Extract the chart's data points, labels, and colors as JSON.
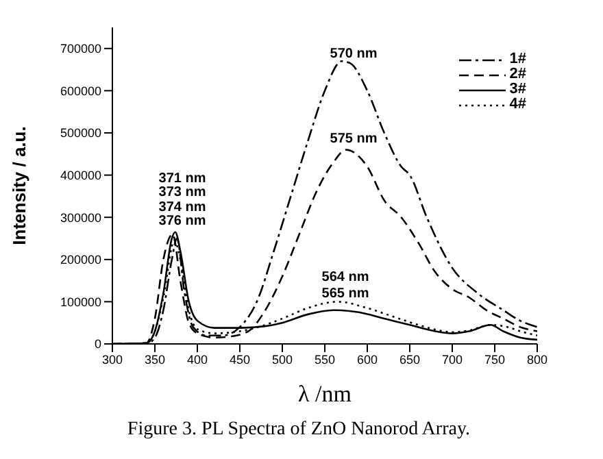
{
  "chart_data": {
    "type": "line",
    "title": "Figure 3. PL Spectra of ZnO Nanorod Array.",
    "xlabel": "λ /nm",
    "ylabel": "Intensity / a.u.",
    "xlim": [
      300,
      800
    ],
    "xticks": [
      300,
      350,
      400,
      450,
      500,
      550,
      600,
      650,
      700,
      750,
      800
    ],
    "ylim": [
      0,
      750000
    ],
    "yticks": [
      0,
      100000,
      200000,
      300000,
      400000,
      500000,
      600000,
      700000
    ],
    "grid": false,
    "legend": "top right",
    "marker": "none",
    "series": [
      {
        "name": "1#",
        "color": "#000000",
        "line_style": "dashdot",
        "x": [
          300,
          340,
          350,
          360,
          370,
          376,
          385,
          395,
          410,
          430,
          450,
          470,
          490,
          510,
          530,
          550,
          570,
          580,
          600,
          620,
          640,
          650,
          670,
          700,
          730,
          760,
          780,
          800
        ],
        "values": [
          0,
          0,
          15000,
          80000,
          200000,
          250000,
          120000,
          40000,
          20000,
          20000,
          40000,
          100000,
          220000,
          350000,
          480000,
          600000,
          670000,
          665000,
          600000,
          500000,
          420000,
          400000,
          300000,
          180000,
          120000,
          80000,
          55000,
          40000
        ]
      },
      {
        "name": "2#",
        "color": "#000000",
        "line_style": "dashed",
        "x": [
          300,
          340,
          350,
          360,
          371,
          380,
          390,
          400,
          420,
          440,
          460,
          480,
          500,
          520,
          540,
          560,
          575,
          600,
          620,
          640,
          660,
          680,
          700,
          720,
          740,
          760,
          780,
          800
        ],
        "values": [
          0,
          2000,
          60000,
          200000,
          260000,
          150000,
          50000,
          25000,
          15000,
          18000,
          30000,
          80000,
          160000,
          260000,
          360000,
          430000,
          460000,
          420000,
          340000,
          300000,
          240000,
          170000,
          130000,
          110000,
          80000,
          60000,
          40000,
          30000
        ]
      },
      {
        "name": "3#",
        "color": "#000000",
        "line_style": "solid",
        "x": [
          300,
          340,
          350,
          360,
          370,
          374,
          380,
          390,
          400,
          420,
          450,
          480,
          500,
          530,
          560,
          590,
          620,
          650,
          680,
          700,
          720,
          745,
          760,
          780,
          800
        ],
        "values": [
          0,
          2000,
          30000,
          120000,
          250000,
          265000,
          220000,
          100000,
          55000,
          38000,
          38000,
          42000,
          50000,
          70000,
          80000,
          75000,
          60000,
          45000,
          30000,
          25000,
          30000,
          45000,
          30000,
          15000,
          10000
        ]
      },
      {
        "name": "4#",
        "color": "#000000",
        "line_style": "dotted",
        "x": [
          300,
          340,
          350,
          360,
          373,
          380,
          390,
          400,
          420,
          450,
          480,
          500,
          530,
          565,
          600,
          630,
          660,
          690,
          700,
          720,
          745,
          765,
          780,
          800
        ],
        "values": [
          0,
          2000,
          30000,
          110000,
          245000,
          200000,
          80000,
          35000,
          25000,
          30000,
          45000,
          60000,
          85000,
          100000,
          85000,
          65000,
          45000,
          30000,
          28000,
          32000,
          45000,
          40000,
          30000,
          20000
        ]
      }
    ],
    "annotations": [
      "371 nm",
      "373 nm",
      "374 nm",
      "376 nm",
      "570 nm",
      "575 nm",
      "564 nm",
      "565 nm"
    ]
  }
}
